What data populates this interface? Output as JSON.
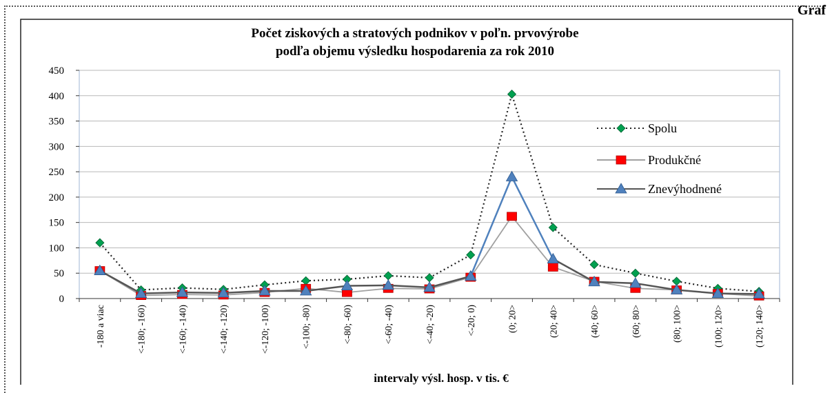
{
  "corner_label": "Graf",
  "chart_data": {
    "type": "line",
    "title": [
      "Počet ziskových a stratových podnikov v poľn. prvovýrobe",
      "podľa objemu výsledku hospodarenia  za rok 2010"
    ],
    "xlabel": "intervaly  výsl. hosp. v tis. €",
    "ylabel": "",
    "ylim": [
      0,
      450
    ],
    "yticks": [
      0,
      50,
      100,
      150,
      200,
      250,
      300,
      350,
      400,
      450
    ],
    "grid": true,
    "legend_position": "right",
    "categories": [
      "-180 a viac",
      "<-180; -160)",
      "<-160; -140)",
      "<-140; -120)",
      "<-120; -100)",
      "<-100; -80)",
      "<-80; -60)",
      "<-60; -40)",
      "<-40; -20)",
      "<-20; 0)",
      "(0; 20>",
      "(20; 40>",
      "(40; 60>",
      "(60; 80>",
      "(80; 100>",
      "(100; 120>",
      "(120; 140>"
    ],
    "series": [
      {
        "name": "Spolu",
        "color": "#00a050",
        "line_color": "#222222",
        "marker": "diamond",
        "dash": "dotted",
        "values": [
          110,
          17,
          21,
          18,
          27,
          35,
          38,
          45,
          41,
          86,
          403,
          140,
          67,
          50,
          34,
          20,
          14
        ]
      },
      {
        "name": "Produkčné",
        "color": "#ff0000",
        "line_color": "#a0a0a0",
        "marker": "square",
        "dash": "solid",
        "values": [
          55,
          6,
          8,
          7,
          12,
          20,
          12,
          20,
          19,
          42,
          162,
          62,
          34,
          20,
          17,
          10,
          5
        ]
      },
      {
        "name": "Znevýhodnené",
        "color": "#4f81bd",
        "line_color": "#555555",
        "marker": "triangle",
        "dash": "solid",
        "values": [
          55,
          10,
          12,
          11,
          15,
          15,
          25,
          26,
          22,
          44,
          240,
          78,
          33,
          30,
          17,
          10,
          9
        ]
      }
    ]
  }
}
